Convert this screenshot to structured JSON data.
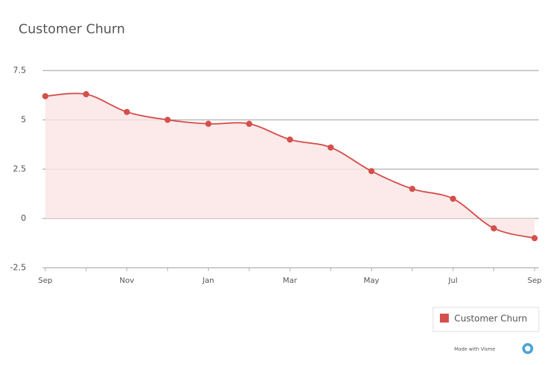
{
  "chart_data": {
    "type": "area",
    "title": "Customer Churn",
    "categories": [
      "Sep",
      null,
      "Nov",
      null,
      "Jan",
      null,
      "Mar",
      null,
      "May",
      null,
      "Jul",
      null,
      "Sep"
    ],
    "series": [
      {
        "name": "Customer Churn",
        "color": "#d4504c",
        "fill": "#fbe4e4",
        "values": [
          6.2,
          6.3,
          5.4,
          5.0,
          4.8,
          4.8,
          4.0,
          3.6,
          2.4,
          1.5,
          1.0,
          -0.5,
          -1.0
        ]
      }
    ],
    "ylim": [
      -2.5,
      7.5
    ],
    "yticks": [
      -2.5,
      0,
      2.5,
      5,
      7.5
    ],
    "grid": true,
    "legend": "bottom-right",
    "credit": "Made with Visme"
  }
}
